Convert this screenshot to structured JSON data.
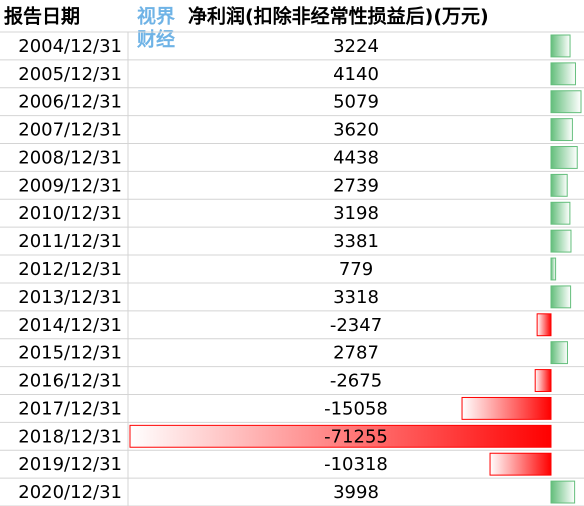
{
  "table": {
    "columns": [
      "报告日期",
      "净利润(扣除非经常性损益后)(万元)"
    ],
    "rows": [
      [
        "2004/12/31",
        3224
      ],
      [
        "2005/12/31",
        4140
      ],
      [
        "2006/12/31",
        5079
      ],
      [
        "2007/12/31",
        3620
      ],
      [
        "2008/12/31",
        4438
      ],
      [
        "2009/12/31",
        2739
      ],
      [
        "2010/12/31",
        3198
      ],
      [
        "2011/12/31",
        3381
      ],
      [
        "2012/12/31",
        779
      ],
      [
        "2013/12/31",
        3318
      ],
      [
        "2014/12/31",
        -2347
      ],
      [
        "2015/12/31",
        2787
      ],
      [
        "2016/12/31",
        -2675
      ],
      [
        "2017/12/31",
        -15058
      ],
      [
        "2018/12/31",
        -71255
      ],
      [
        "2019/12/31",
        -10318
      ],
      [
        "2020/12/31",
        3998
      ]
    ]
  },
  "watermark": [
    "视界",
    "财经"
  ]
}
